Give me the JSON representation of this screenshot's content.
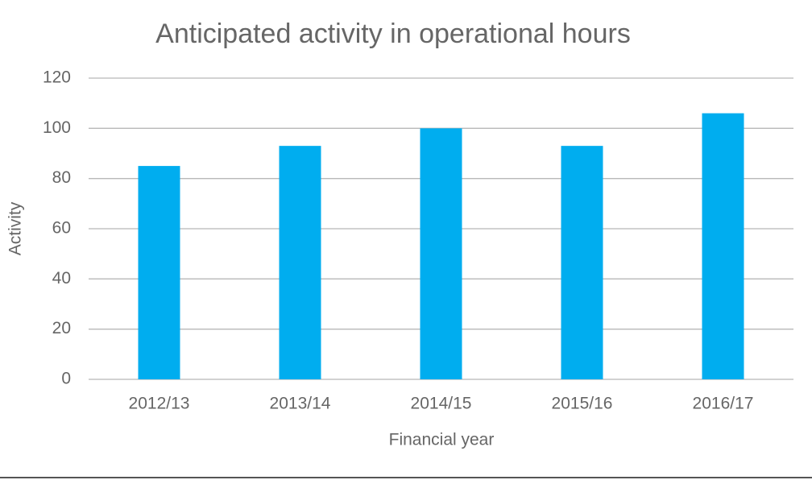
{
  "chart_data": {
    "type": "bar",
    "title": "Anticipated activity in operational hours",
    "x_label": "Financial year",
    "y_label": "Activity",
    "categories": [
      "2012/13",
      "2013/14",
      "2014/15",
      "2015/16",
      "2016/17"
    ],
    "values": [
      85,
      93,
      100,
      93,
      106
    ],
    "color": "#00adef",
    "ylim": [
      0,
      120
    ],
    "yticks": [
      0,
      20,
      40,
      60,
      80,
      100,
      120
    ],
    "grid": true
  }
}
